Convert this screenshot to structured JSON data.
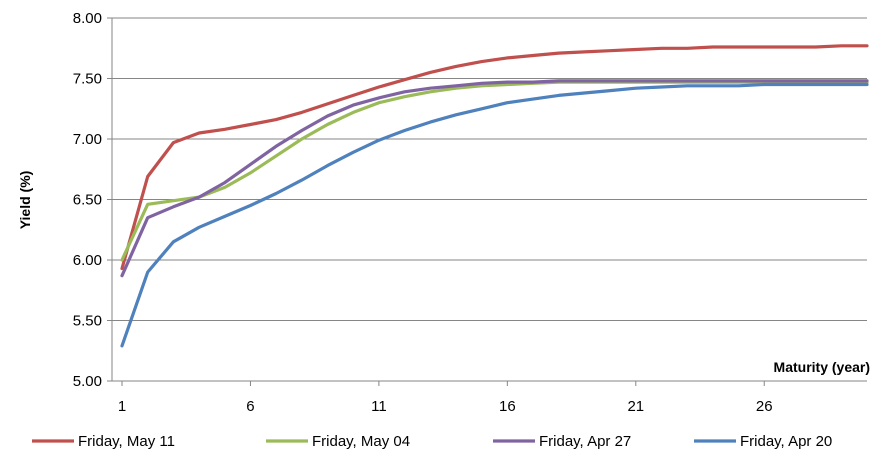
{
  "chart_data": {
    "type": "line",
    "xlabel": "Maturity (year)",
    "ylabel": "Yield (%)",
    "xlim": [
      1,
      30
    ],
    "ylim": [
      5.0,
      8.0
    ],
    "x_ticks": [
      1,
      6,
      11,
      16,
      21,
      26
    ],
    "y_ticks": [
      "5.00",
      "5.50",
      "6.00",
      "6.50",
      "7.00",
      "7.50",
      "8.00"
    ],
    "grid": "horizontal",
    "legend": "bottom",
    "series": [
      {
        "name": "Friday, May 11",
        "color": "#c0504d",
        "x": [
          1,
          2,
          3,
          4,
          5,
          6,
          7,
          8,
          9,
          10,
          11,
          12,
          13,
          14,
          15,
          16,
          17,
          18,
          19,
          20,
          21,
          22,
          23,
          24,
          25,
          26,
          27,
          28,
          29,
          30
        ],
        "y": [
          5.93,
          6.69,
          6.97,
          7.05,
          7.08,
          7.12,
          7.16,
          7.22,
          7.29,
          7.36,
          7.43,
          7.49,
          7.55,
          7.6,
          7.64,
          7.67,
          7.69,
          7.71,
          7.72,
          7.73,
          7.74,
          7.75,
          7.75,
          7.76,
          7.76,
          7.76,
          7.76,
          7.76,
          7.77,
          7.77
        ]
      },
      {
        "name": "Friday, May 04",
        "color": "#9bbb59",
        "x": [
          1,
          2,
          3,
          4,
          5,
          6,
          7,
          8,
          9,
          10,
          11,
          12,
          13,
          14,
          15,
          16,
          17,
          18,
          19,
          20,
          21,
          22,
          23,
          24,
          25,
          26,
          27,
          28,
          29,
          30
        ],
        "y": [
          6.0,
          6.46,
          6.49,
          6.52,
          6.6,
          6.72,
          6.86,
          7.0,
          7.12,
          7.22,
          7.3,
          7.35,
          7.39,
          7.42,
          7.44,
          7.45,
          7.46,
          7.47,
          7.47,
          7.47,
          7.47,
          7.47,
          7.47,
          7.47,
          7.47,
          7.47,
          7.47,
          7.47,
          7.47,
          7.47
        ]
      },
      {
        "name": "Friday, Apr 27",
        "color": "#8064a2",
        "x": [
          1,
          2,
          3,
          4,
          5,
          6,
          7,
          8,
          9,
          10,
          11,
          12,
          13,
          14,
          15,
          16,
          17,
          18,
          19,
          20,
          21,
          22,
          23,
          24,
          25,
          26,
          27,
          28,
          29,
          30
        ],
        "y": [
          5.87,
          6.35,
          6.44,
          6.52,
          6.64,
          6.79,
          6.94,
          7.07,
          7.19,
          7.28,
          7.34,
          7.39,
          7.42,
          7.44,
          7.46,
          7.47,
          7.47,
          7.48,
          7.48,
          7.48,
          7.48,
          7.48,
          7.48,
          7.48,
          7.48,
          7.48,
          7.48,
          7.48,
          7.48,
          7.48
        ]
      },
      {
        "name": "Friday, Apr 20",
        "color": "#4f81bd",
        "x": [
          1,
          2,
          3,
          4,
          5,
          6,
          7,
          8,
          9,
          10,
          11,
          12,
          13,
          14,
          15,
          16,
          17,
          18,
          19,
          20,
          21,
          22,
          23,
          24,
          25,
          26,
          27,
          28,
          29,
          30
        ],
        "y": [
          5.29,
          5.9,
          6.15,
          6.27,
          6.36,
          6.45,
          6.55,
          6.66,
          6.78,
          6.89,
          6.99,
          7.07,
          7.14,
          7.2,
          7.25,
          7.3,
          7.33,
          7.36,
          7.38,
          7.4,
          7.42,
          7.43,
          7.44,
          7.44,
          7.44,
          7.45,
          7.45,
          7.45,
          7.45,
          7.45
        ]
      }
    ]
  }
}
